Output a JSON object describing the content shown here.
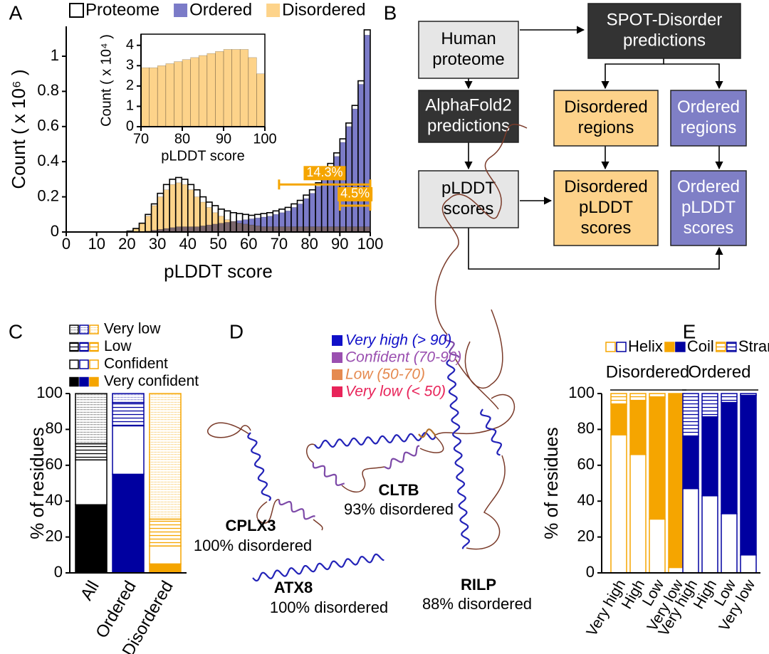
{
  "panel_labels": [
    "A",
    "B",
    "C",
    "D",
    "E"
  ],
  "chart_data": [
    {
      "type": "histogram",
      "xlabel": "pLDDT score",
      "ylabel": "Count ( x 10⁶ )",
      "bins": [
        20,
        22,
        24,
        26,
        28,
        30,
        32,
        34,
        36,
        38,
        40,
        42,
        44,
        46,
        48,
        50,
        52,
        54,
        56,
        58,
        60,
        62,
        64,
        66,
        68,
        70,
        72,
        74,
        76,
        78,
        80,
        82,
        84,
        86,
        88,
        90,
        92,
        94,
        96,
        98,
        100
      ],
      "series": [
        {
          "name": "Proteome",
          "color": "#000000",
          "style": "outline",
          "values": [
            0.005,
            0.02,
            0.05,
            0.1,
            0.16,
            0.22,
            0.27,
            0.3,
            0.31,
            0.3,
            0.27,
            0.24,
            0.2,
            0.17,
            0.15,
            0.13,
            0.12,
            0.11,
            0.105,
            0.1,
            0.095,
            0.1,
            0.105,
            0.11,
            0.12,
            0.13,
            0.14,
            0.16,
            0.18,
            0.21,
            0.24,
            0.28,
            0.33,
            0.39,
            0.45,
            0.53,
            0.62,
            0.72,
            0.86,
            1.15
          ]
        },
        {
          "name": "Ordered",
          "color": "#7b7bc8",
          "style": "filled",
          "values": [
            0,
            0,
            0.002,
            0.005,
            0.01,
            0.015,
            0.02,
            0.025,
            0.03,
            0.03,
            0.03,
            0.03,
            0.035,
            0.04,
            0.045,
            0.05,
            0.055,
            0.06,
            0.065,
            0.07,
            0.075,
            0.08,
            0.085,
            0.09,
            0.1,
            0.11,
            0.12,
            0.14,
            0.16,
            0.19,
            0.22,
            0.26,
            0.31,
            0.37,
            0.43,
            0.51,
            0.6,
            0.7,
            0.84,
            1.12
          ]
        },
        {
          "name": "Disordered",
          "color": "#fdd38a",
          "style": "filled",
          "values": [
            0.005,
            0.02,
            0.05,
            0.09,
            0.15,
            0.2,
            0.24,
            0.27,
            0.28,
            0.27,
            0.24,
            0.2,
            0.17,
            0.14,
            0.11,
            0.09,
            0.07,
            0.06,
            0.05,
            0.045,
            0.04,
            0.035,
            0.03,
            0.03,
            0.03,
            0.03,
            0.03,
            0.03,
            0.03,
            0.03,
            0.03,
            0.03,
            0.03,
            0.03,
            0.03,
            0.03,
            0.03,
            0.03,
            0.03,
            0.03
          ]
        }
      ],
      "xlim": [
        0,
        100
      ],
      "xticks": [
        0,
        10,
        20,
        30,
        40,
        50,
        60,
        70,
        80,
        90,
        100
      ],
      "ylim": [
        0,
        1.17
      ],
      "yticks": [
        0,
        0.2,
        0.4,
        0.6,
        0.8,
        1
      ],
      "annotations": [
        {
          "label": "14.3%",
          "x": [
            70,
            100
          ],
          "y": 0.27,
          "color": "#f5a500"
        },
        {
          "label": "4.5%",
          "x": [
            90,
            100
          ],
          "y": 0.15,
          "color": "#f5a500"
        }
      ]
    },
    {
      "type": "histogram",
      "xlabel": "pLDDT score",
      "ylabel": "Count ( x 10⁴ )",
      "bins": [
        70,
        72,
        74,
        76,
        78,
        80,
        82,
        84,
        86,
        88,
        90,
        92,
        94,
        96,
        98,
        100
      ],
      "values": [
        2.9,
        2.9,
        3.0,
        3.1,
        3.2,
        3.3,
        3.4,
        3.5,
        3.6,
        3.7,
        3.8,
        3.8,
        3.8,
        3.4,
        2.6
      ],
      "color": "#fdd38a",
      "xlim": [
        70,
        100
      ],
      "xticks": [
        70,
        80,
        90,
        100
      ],
      "ylim": [
        0,
        4.55
      ],
      "yticks": [
        0,
        1,
        2,
        3,
        4
      ]
    },
    {
      "type": "stacked_bar",
      "ylabel": "% of residues",
      "categories": [
        "All",
        "Ordered",
        "Disordered"
      ],
      "colors": [
        "#000000",
        "#0000a0",
        "#f5a500"
      ],
      "series": [
        {
          "name": "Very confident",
          "pattern": "solid",
          "values": [
            38,
            55,
            5
          ]
        },
        {
          "name": "Confident",
          "pattern": "empty",
          "values": [
            25,
            27,
            10
          ]
        },
        {
          "name": "Low",
          "pattern": "lines",
          "values": [
            9,
            13,
            15
          ]
        },
        {
          "name": "Very low",
          "pattern": "dots",
          "values": [
            28,
            5,
            70
          ]
        }
      ],
      "ylim": [
        0,
        100
      ],
      "yticks": [
        0,
        20,
        40,
        60,
        80,
        100
      ]
    },
    {
      "type": "grouped_stacked_bar",
      "ylabel": "% of residues",
      "groups": [
        {
          "name": "Disordered",
          "color": "#f5a500",
          "categories": [
            "Very high",
            "High",
            "Low",
            "Very low"
          ]
        },
        {
          "name": "Ordered",
          "color": "#0000a0",
          "categories": [
            "Very high",
            "High",
            "Low",
            "Very low"
          ]
        }
      ],
      "series": [
        {
          "name": "Helix",
          "pattern": "empty",
          "values": [
            77,
            66,
            30,
            3,
            47,
            43,
            33,
            10
          ]
        },
        {
          "name": "Coil",
          "pattern": "solid",
          "values": [
            17,
            30,
            68,
            97,
            29,
            44,
            62,
            89
          ]
        },
        {
          "name": "Strand",
          "pattern": "lines",
          "values": [
            6,
            4,
            2,
            0,
            24,
            13,
            5,
            1
          ]
        }
      ],
      "ylim": [
        0,
        100
      ],
      "yticks": [
        0,
        20,
        40,
        60,
        80,
        100
      ]
    }
  ],
  "diagram": {
    "nodes": [
      {
        "lines": [
          "Human",
          "proteome"
        ],
        "color": "#e6e6e6",
        "text_color": "#000000"
      },
      {
        "lines": [
          "SPOT-Disorder",
          "predictions"
        ],
        "color": "#333333",
        "text_color": "#ffffff"
      },
      {
        "lines": [
          "AlphaFold2",
          "predictions"
        ],
        "color": "#333333",
        "text_color": "#ffffff"
      },
      {
        "lines": [
          "Disordered",
          "regions"
        ],
        "color": "#fdd28a",
        "text_color": "#000000"
      },
      {
        "lines": [
          "Ordered",
          "regions"
        ],
        "color": "#7f7fc6",
        "text_color": "#ffffff"
      },
      {
        "lines": [
          "pLDDT",
          "scores"
        ],
        "color": "#e6e6e6",
        "text_color": "#000000"
      },
      {
        "lines": [
          "Disordered",
          "pLDDT",
          "scores"
        ],
        "color": "#fdd28a",
        "text_color": "#000000"
      },
      {
        "lines": [
          "Ordered",
          "pLDDT",
          "scores"
        ],
        "color": "#7f7fc6",
        "text_color": "#ffffff"
      }
    ]
  },
  "structures": {
    "legend": [
      {
        "label": "Very high (> 90)",
        "color": "#1010c8"
      },
      {
        "label": "Confident (70-90)",
        "color": "#9a4fb0"
      },
      {
        "label": "Low (50-70)",
        "color": "#e58a50"
      },
      {
        "label": "Very low (< 50)",
        "color": "#e8245a"
      }
    ],
    "proteins": [
      {
        "name": "CPLX3",
        "note": "100% disordered"
      },
      {
        "name": "CLTB",
        "note": "93% disordered"
      },
      {
        "name": "ATX8",
        "note": "100% disordered"
      },
      {
        "name": "RILP",
        "note": "88% disordered"
      }
    ]
  }
}
